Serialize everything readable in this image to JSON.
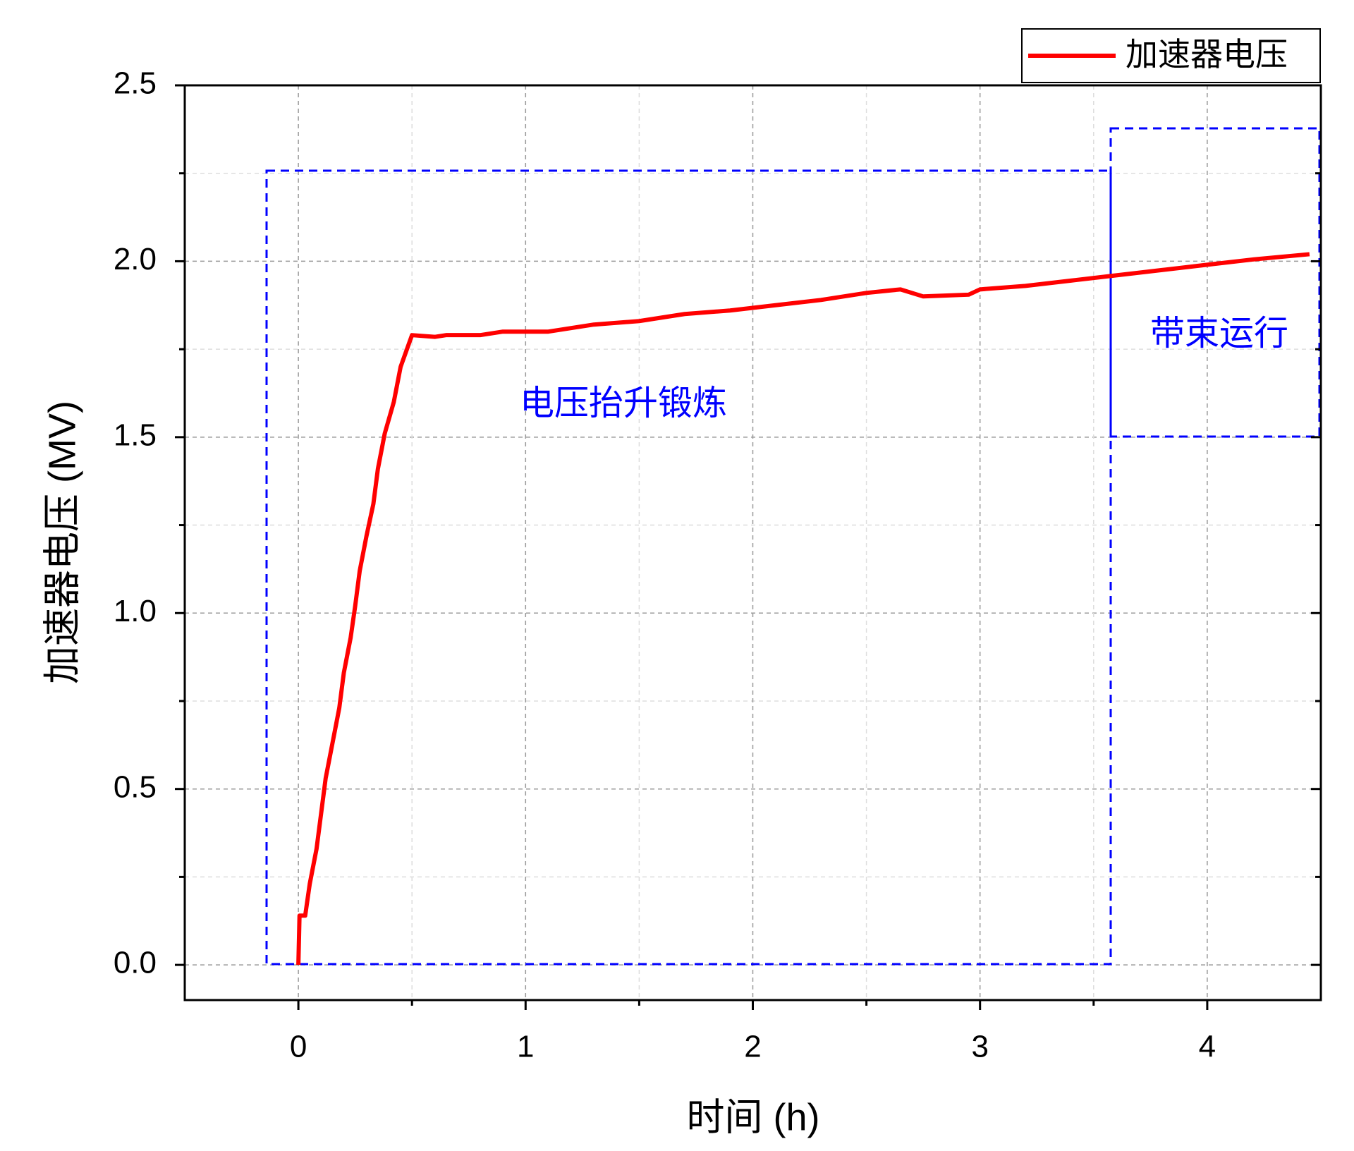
{
  "chart_data": {
    "type": "line",
    "x_label": "时间 (h)",
    "y_label": "加速器电压 (MV)",
    "x": [
      0,
      0.005,
      0.03,
      0.05,
      0.08,
      0.1,
      0.12,
      0.15,
      0.18,
      0.2,
      0.23,
      0.25,
      0.27,
      0.3,
      0.33,
      0.35,
      0.38,
      0.42,
      0.45,
      0.5,
      0.6,
      0.65,
      0.8,
      0.9,
      1.1,
      1.3,
      1.5,
      1.7,
      1.9,
      2.1,
      2.3,
      2.5,
      2.65,
      2.75,
      2.95,
      3.0,
      3.2,
      3.4,
      3.6,
      3.8,
      4.0,
      4.2,
      4.45
    ],
    "series": [
      {
        "name": "加速器电压",
        "color": "#ff0000",
        "values": [
          0,
          0.14,
          0.14,
          0.23,
          0.33,
          0.43,
          0.53,
          0.63,
          0.73,
          0.83,
          0.93,
          1.02,
          1.12,
          1.22,
          1.31,
          1.41,
          1.51,
          1.6,
          1.7,
          1.79,
          1.785,
          1.79,
          1.79,
          1.8,
          1.8,
          1.82,
          1.83,
          1.85,
          1.86,
          1.875,
          1.89,
          1.91,
          1.92,
          1.9,
          1.905,
          1.92,
          1.93,
          1.945,
          1.96,
          1.975,
          1.99,
          2.005,
          2.02
        ]
      }
    ],
    "xlim": [
      -0.5,
      4.5
    ],
    "xticks": [
      0,
      1,
      2,
      3,
      4
    ],
    "ylim": [
      -0.1,
      2.5
    ],
    "yticks": [
      {
        "value": 0,
        "label": "0.0"
      },
      0.5,
      {
        "value": 1,
        "label": "1.0"
      },
      1.5,
      {
        "value": 2,
        "label": "2.0"
      },
      2.5
    ],
    "grid": true,
    "legend": "top-right",
    "annotations": [
      "电压抬升锻炼",
      "带束运行"
    ]
  }
}
